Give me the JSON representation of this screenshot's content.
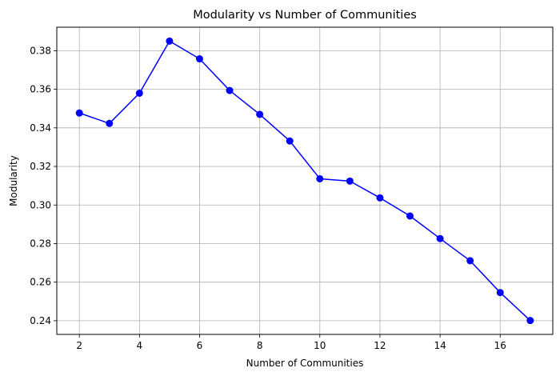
{
  "chart_data": {
    "type": "line",
    "title": "Modularity vs Number of Communities",
    "xlabel": "Number of Communities",
    "ylabel": "Modularity",
    "x": [
      2,
      3,
      4,
      5,
      6,
      7,
      8,
      9,
      10,
      11,
      12,
      13,
      14,
      15,
      16,
      17
    ],
    "series": [
      {
        "values": [
          0.3477,
          0.3423,
          0.358,
          0.385,
          0.3758,
          0.3594,
          0.347,
          0.3332,
          0.3136,
          0.3124,
          0.3037,
          0.2943,
          0.2826,
          0.2711,
          0.2546,
          0.2401
        ],
        "color": "#0000ff",
        "marker": "circle"
      }
    ],
    "xlim": [
      1.25,
      17.75
    ],
    "ylim": [
      0.2329,
      0.3922
    ],
    "xticks": [
      2,
      4,
      6,
      8,
      10,
      12,
      14,
      16
    ],
    "yticks": [
      0.24,
      0.26,
      0.28,
      0.3,
      0.32,
      0.34,
      0.36,
      0.38
    ],
    "ytick_labels": [
      "0.24",
      "0.26",
      "0.28",
      "0.30",
      "0.32",
      "0.34",
      "0.36",
      "0.38"
    ],
    "grid": true,
    "legend": "none"
  }
}
